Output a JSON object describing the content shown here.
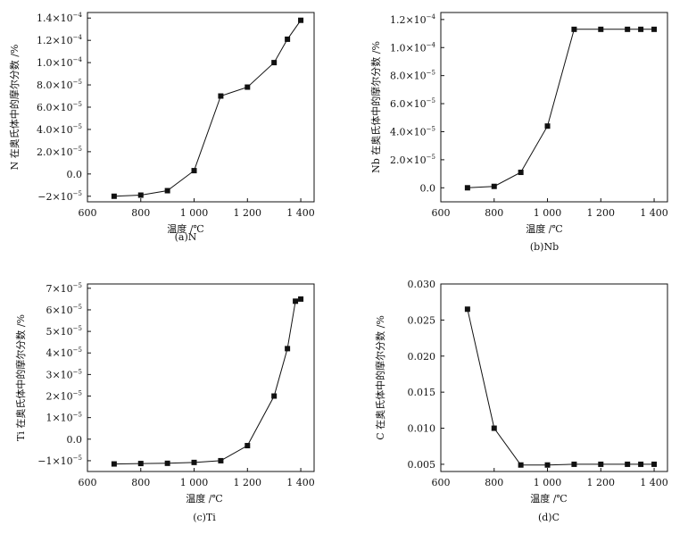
{
  "chart_data": [
    {
      "id": "a",
      "type": "line",
      "caption": "(a)N",
      "xlabel": "温度 /℃",
      "ylabel": "N 在奥氏体中的摩尔分数 /%",
      "xlim": [
        600,
        1450
      ],
      "ylim": [
        -2.5e-05,
        0.000145
      ],
      "x_ticks": [
        600,
        800,
        1000,
        1200,
        1400
      ],
      "x_tick_labels": [
        "600",
        "800",
        "1 000",
        "1 200",
        "1 400"
      ],
      "y_ticks": [
        {
          "value": -2e-05,
          "mant": "−2×10",
          "exp": "−5"
        },
        {
          "value": 0.0,
          "mant": "0.0",
          "exp": ""
        },
        {
          "value": 2e-05,
          "mant": "2.0×10",
          "exp": "−5"
        },
        {
          "value": 4e-05,
          "mant": "4.0×10",
          "exp": "−5"
        },
        {
          "value": 6e-05,
          "mant": "6.0×10",
          "exp": "−5"
        },
        {
          "value": 8e-05,
          "mant": "8.0×10",
          "exp": "−5"
        },
        {
          "value": 0.0001,
          "mant": "1.0×10",
          "exp": "−4"
        },
        {
          "value": 0.00012,
          "mant": "1.2×10",
          "exp": "−4"
        },
        {
          "value": 0.00014,
          "mant": "1.4×10",
          "exp": "−4"
        }
      ],
      "series": [
        {
          "name": "N",
          "x": [
            700,
            800,
            900,
            1000,
            1100,
            1200,
            1300,
            1350,
            1400
          ],
          "y": [
            -2e-05,
            -1.9e-05,
            -1.5e-05,
            3e-06,
            7e-05,
            7.8e-05,
            0.0001,
            0.000121,
            0.000138
          ]
        }
      ]
    },
    {
      "id": "b",
      "type": "line",
      "caption": "(b)Nb",
      "xlabel": "温度 /℃",
      "ylabel": "Nb 在奥氏体中的摩尔分数 /%",
      "xlim": [
        600,
        1450
      ],
      "ylim": [
        -1e-05,
        0.000125
      ],
      "x_ticks": [
        600,
        800,
        1000,
        1200,
        1400
      ],
      "x_tick_labels": [
        "600",
        "800",
        "1 000",
        "1 200",
        "1 400"
      ],
      "y_ticks": [
        {
          "value": 0.0,
          "mant": "0.0",
          "exp": ""
        },
        {
          "value": 2e-05,
          "mant": "2.0×10",
          "exp": "−5"
        },
        {
          "value": 4e-05,
          "mant": "4.0×10",
          "exp": "−5"
        },
        {
          "value": 6e-05,
          "mant": "6.0×10",
          "exp": "−5"
        },
        {
          "value": 8e-05,
          "mant": "8.0×10",
          "exp": "−5"
        },
        {
          "value": 0.0001,
          "mant": "1.0×10",
          "exp": "−4"
        },
        {
          "value": 0.00012,
          "mant": "1.2×10",
          "exp": "−4"
        }
      ],
      "series": [
        {
          "name": "Nb",
          "x": [
            700,
            800,
            900,
            1000,
            1100,
            1200,
            1300,
            1350,
            1400
          ],
          "y": [
            0.0,
            1e-06,
            1.1e-05,
            4.4e-05,
            0.000113,
            0.000113,
            0.000113,
            0.000113,
            0.000113
          ]
        }
      ]
    },
    {
      "id": "c",
      "type": "line",
      "caption": "(c)Ti",
      "xlabel": "温度 /℃",
      "ylabel": "Ti 在奥氏体中的摩尔分数 /%",
      "xlim": [
        600,
        1450
      ],
      "ylim": [
        -1.5e-05,
        7.2e-05
      ],
      "x_ticks": [
        600,
        800,
        1000,
        1200,
        1400
      ],
      "x_tick_labels": [
        "600",
        "800",
        "1 000",
        "1 200",
        "1 400"
      ],
      "y_ticks": [
        {
          "value": -1e-05,
          "mant": "−1×10",
          "exp": "−5"
        },
        {
          "value": 0.0,
          "mant": "0.0",
          "exp": ""
        },
        {
          "value": 1e-05,
          "mant": "1×10",
          "exp": "−5"
        },
        {
          "value": 2e-05,
          "mant": "2×10",
          "exp": "−5"
        },
        {
          "value": 3e-05,
          "mant": "3×10",
          "exp": "−5"
        },
        {
          "value": 4e-05,
          "mant": "4×10",
          "exp": "−5"
        },
        {
          "value": 5e-05,
          "mant": "5×10",
          "exp": "−5"
        },
        {
          "value": 6e-05,
          "mant": "6×10",
          "exp": "−5"
        },
        {
          "value": 7e-05,
          "mant": "7×10",
          "exp": "−5"
        }
      ],
      "series": [
        {
          "name": "Ti",
          "x": [
            700,
            800,
            900,
            1000,
            1100,
            1200,
            1300,
            1350,
            1380,
            1400
          ],
          "y": [
            -1.15e-05,
            -1.13e-05,
            -1.12e-05,
            -1.08e-05,
            -1e-05,
            -3e-06,
            2e-05,
            4.2e-05,
            6.4e-05,
            6.5e-05
          ]
        }
      ]
    },
    {
      "id": "d",
      "type": "line",
      "caption": "(d)C",
      "xlabel": "温度 /℃",
      "ylabel": "C 在奥氏体中的摩尔分数 /%",
      "xlim": [
        600,
        1450
      ],
      "ylim": [
        0.004,
        0.03
      ],
      "x_ticks": [
        600,
        800,
        1000,
        1200,
        1400
      ],
      "x_tick_labels": [
        "600",
        "800",
        "1 000",
        "1 200",
        "1 400"
      ],
      "y_ticks": [
        {
          "value": 0.005,
          "mant": "0.005",
          "exp": ""
        },
        {
          "value": 0.01,
          "mant": "0.010",
          "exp": ""
        },
        {
          "value": 0.015,
          "mant": "0.015",
          "exp": ""
        },
        {
          "value": 0.02,
          "mant": "0.020",
          "exp": ""
        },
        {
          "value": 0.025,
          "mant": "0.025",
          "exp": ""
        },
        {
          "value": 0.03,
          "mant": "0.030",
          "exp": ""
        }
      ],
      "series": [
        {
          "name": "C",
          "x": [
            700,
            800,
            900,
            1000,
            1100,
            1200,
            1300,
            1350,
            1400
          ],
          "y": [
            0.0265,
            0.01,
            0.0049,
            0.0049,
            0.005,
            0.005,
            0.005,
            0.005,
            0.005
          ]
        }
      ]
    }
  ]
}
